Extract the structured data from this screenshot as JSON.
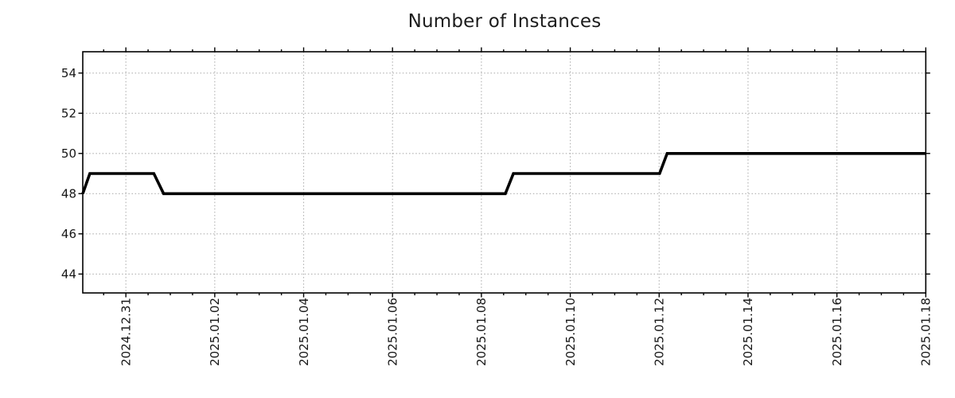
{
  "chart_data": {
    "type": "line",
    "title": "Number of Instances",
    "xlabel": "",
    "ylabel": "",
    "x_axis": {
      "unit": "days_after_2024.12.31",
      "xlim": [
        -0.97,
        18
      ],
      "major_tick_days": [
        0,
        2,
        4,
        6,
        8,
        10,
        12,
        14,
        16,
        18
      ],
      "tick_labels": [
        "2024.12.31",
        "2025.01.02",
        "2025.01.04",
        "2025.01.06",
        "2025.01.08",
        "2025.01.10",
        "2025.01.12",
        "2025.01.14",
        "2025.01.16",
        "2025.01.18"
      ],
      "minor_tick_step_days": 0.5,
      "label_rotation_deg": 90
    },
    "y_axis": {
      "ylim": [
        43.06,
        55.06
      ],
      "ticks": [
        44,
        46,
        48,
        50,
        52,
        54
      ]
    },
    "grid": {
      "shown": true,
      "style": "dotted",
      "color": "#b0b0b0"
    },
    "series": [
      {
        "name": "instances",
        "color": "#000000",
        "line_width": 3.6,
        "points": [
          [
            -0.97,
            48
          ],
          [
            -0.81,
            49
          ],
          [
            0.63,
            49
          ],
          [
            0.85,
            48
          ],
          [
            8.54,
            48
          ],
          [
            8.72,
            49
          ],
          [
            12.01,
            49
          ],
          [
            12.18,
            50
          ],
          [
            18.0,
            50
          ]
        ]
      }
    ],
    "annotations": [],
    "legend": null
  },
  "colors": {
    "axis": "#000000",
    "text": "#161616",
    "background": "#ffffff"
  }
}
